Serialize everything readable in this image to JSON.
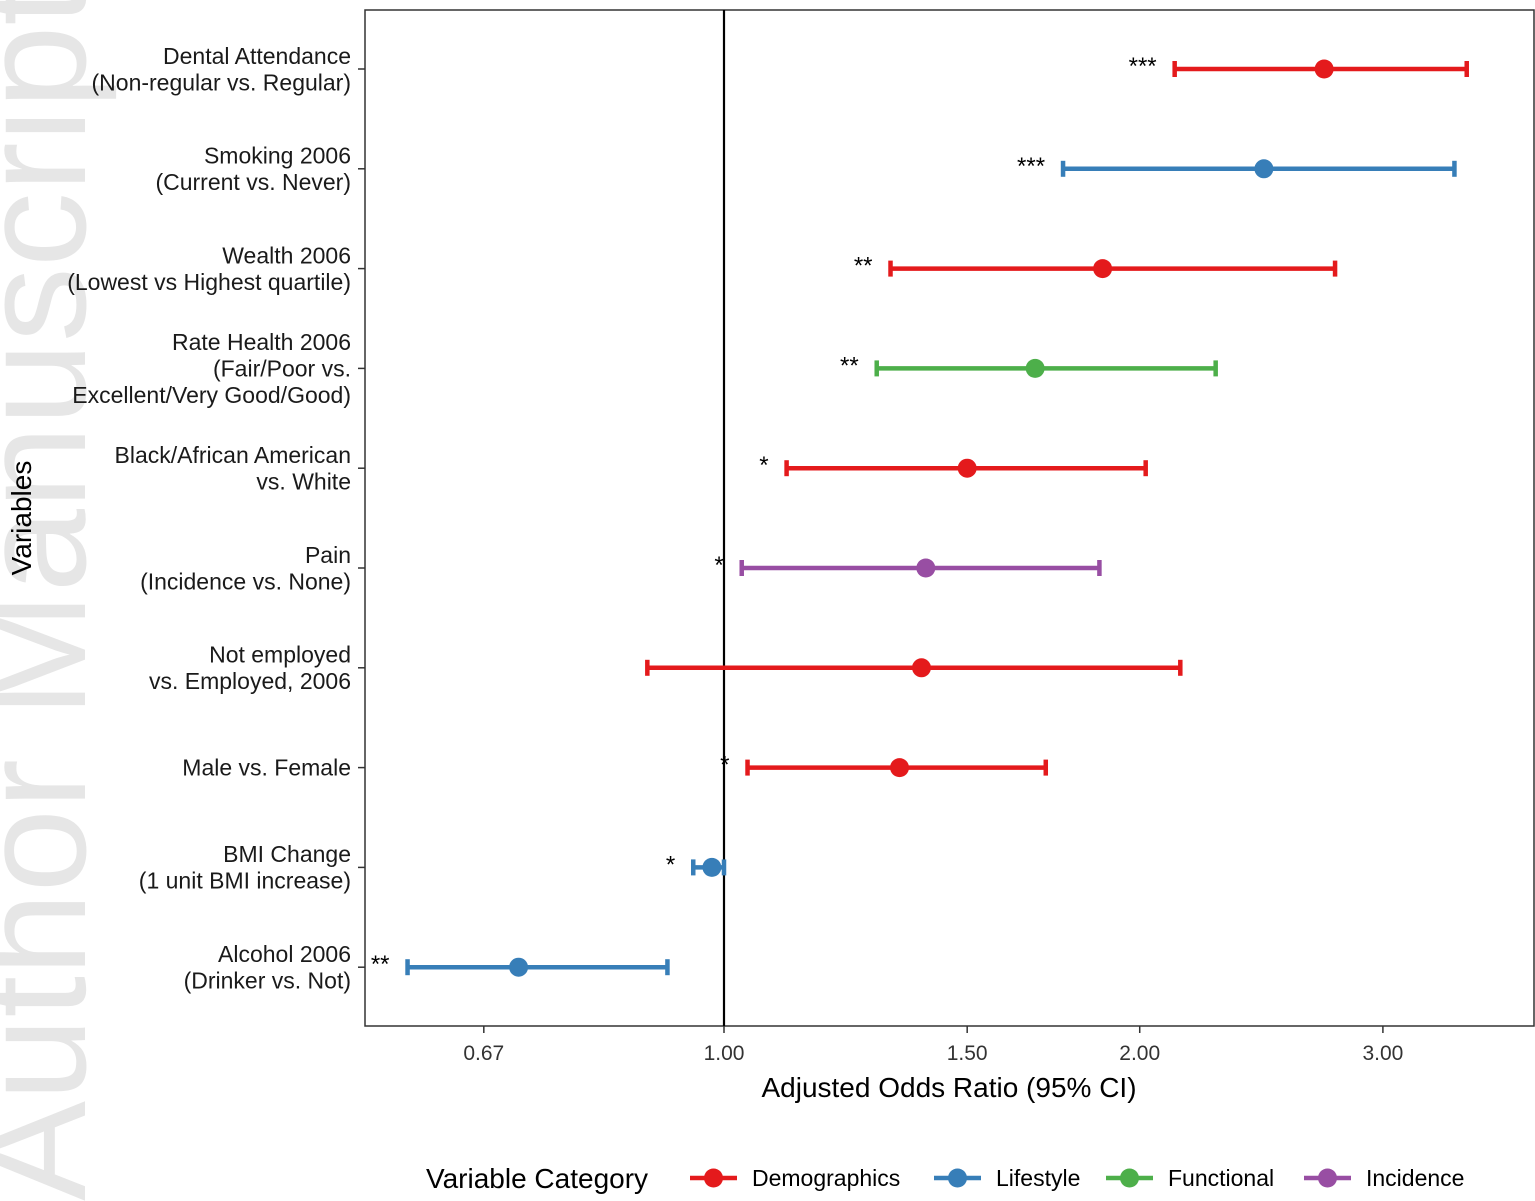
{
  "watermark": "Author Manuscript",
  "chart_data": {
    "type": "forest",
    "title": "",
    "xlabel": "Adjusted Odds Ratio (95% CI)",
    "ylabel": "Variables",
    "x_scale": "log",
    "xlim": [
      0.5,
      3.6
    ],
    "reference_line": 1.0,
    "x_ticks": [
      0.67,
      1.0,
      1.5,
      2.0,
      3.0
    ],
    "x_tick_labels": [
      "0.67",
      "1.00",
      "1.50",
      "2.00",
      "3.00"
    ],
    "legend": {
      "title": "Variable Category",
      "position": "bottom",
      "entries": [
        {
          "name": "Demographics",
          "color": "#e41a1c"
        },
        {
          "name": "Lifestyle",
          "color": "#377eb8"
        },
        {
          "name": "Functional",
          "color": "#4daf4a"
        },
        {
          "name": "Incidence",
          "color": "#984ea3"
        }
      ]
    },
    "rows": [
      {
        "label": [
          "Dental Attendance",
          "(Non-regular vs. Regular)"
        ],
        "category": "Demographics",
        "or": 2.72,
        "lower": 2.12,
        "upper": 3.45,
        "sig": "***"
      },
      {
        "label": [
          "Smoking 2006",
          "(Current vs. Never)"
        ],
        "category": "Lifestyle",
        "or": 2.46,
        "lower": 1.76,
        "upper": 3.38,
        "sig": "***"
      },
      {
        "label": [
          "Wealth 2006",
          "(Lowest vs Highest quartile)"
        ],
        "category": "Demographics",
        "or": 1.88,
        "lower": 1.32,
        "upper": 2.77,
        "sig": "**"
      },
      {
        "label": [
          "Rate Health 2006",
          "(Fair/Poor vs.",
          "Excellent/Very Good/Good)"
        ],
        "category": "Functional",
        "or": 1.68,
        "lower": 1.29,
        "upper": 2.27,
        "sig": "**"
      },
      {
        "label": [
          "Black/African American",
          "vs. White"
        ],
        "category": "Demographics",
        "or": 1.5,
        "lower": 1.11,
        "upper": 2.02,
        "sig": "*"
      },
      {
        "label": [
          "Pain",
          "(Incidence vs. None)"
        ],
        "category": "Incidence",
        "or": 1.4,
        "lower": 1.03,
        "upper": 1.87,
        "sig": "*"
      },
      {
        "label": [
          "Not employed",
          "vs. Employed, 2006"
        ],
        "category": "Demographics",
        "or": 1.39,
        "lower": 0.88,
        "upper": 2.14,
        "sig": ""
      },
      {
        "label": [
          "Male vs. Female"
        ],
        "category": "Demographics",
        "or": 1.34,
        "lower": 1.04,
        "upper": 1.71,
        "sig": "*"
      },
      {
        "label": [
          "BMI Change",
          "(1 unit BMI increase)"
        ],
        "category": "Lifestyle",
        "or": 0.98,
        "lower": 0.95,
        "upper": 1.0,
        "sig": "*"
      },
      {
        "label": [
          "Alcohol 2006",
          "(Drinker vs. Not)"
        ],
        "category": "Lifestyle",
        "or": 0.71,
        "lower": 0.59,
        "upper": 0.91,
        "sig": "**"
      }
    ]
  }
}
